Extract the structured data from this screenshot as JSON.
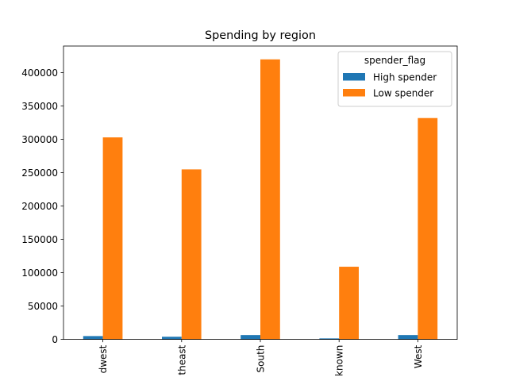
{
  "chart_data": {
    "type": "bar",
    "title": "Spending by region",
    "xlabel": "",
    "ylabel": "",
    "categories": [
      "Midwest",
      "Northeast",
      "South",
      "Unknown",
      "West"
    ],
    "category_tick_labels": [
      "dwest",
      "theast",
      "South",
      "known",
      "West"
    ],
    "ylim": [
      0,
      440000
    ],
    "yticks": [
      0,
      50000,
      100000,
      150000,
      200000,
      250000,
      300000,
      350000,
      400000
    ],
    "ytick_labels": [
      "0",
      "50000",
      "100000",
      "150000",
      "200000",
      "250000",
      "300000",
      "350000",
      "400000"
    ],
    "grid": false,
    "legend": {
      "title": "spender_flag",
      "placement": "top-right"
    },
    "series": [
      {
        "name": "High spender",
        "color": "#1f77b4",
        "values": [
          5000,
          4000,
          6500,
          1500,
          6500
        ]
      },
      {
        "name": "Low spender",
        "color": "#ff7f0e",
        "values": [
          303000,
          255000,
          420000,
          109000,
          332000
        ]
      }
    ]
  }
}
